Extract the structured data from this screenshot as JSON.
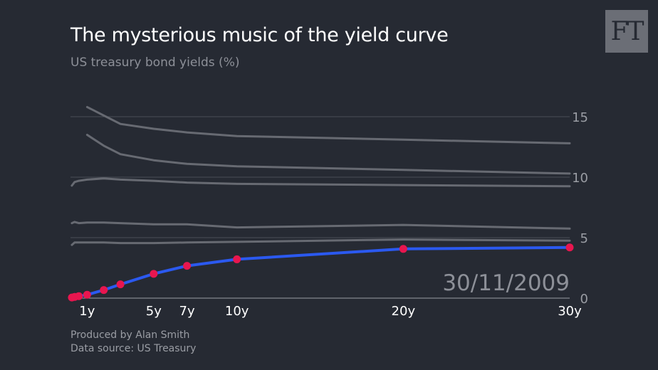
{
  "header": {
    "title": "The mysterious music of the yield curve",
    "subtitle": "US treasury bond yields (%)"
  },
  "logo": {
    "text": "FT"
  },
  "footer": {
    "line1": "Produced by Alan Smith",
    "line2": "Data source: US Treasury"
  },
  "chart_data": {
    "type": "line",
    "title": "The mysterious music of the yield curve",
    "subtitle": "US treasury bond yields (%)",
    "date_label": "30/11/2009",
    "x_ticks": [
      {
        "x": 1,
        "label": "1y"
      },
      {
        "x": 5,
        "label": "5y"
      },
      {
        "x": 7,
        "label": "7y"
      },
      {
        "x": 10,
        "label": "10y"
      },
      {
        "x": 20,
        "label": "20y"
      },
      {
        "x": 30,
        "label": "30y"
      }
    ],
    "y_ticks": [
      0,
      5,
      10,
      15
    ],
    "ylim": [
      0,
      16
    ],
    "xlim": [
      0,
      30
    ],
    "grid": true,
    "current": {
      "color": "#2b59f0",
      "marker_color": "#e8164f",
      "x": [
        0.0833,
        0.25,
        0.5,
        1,
        2,
        3,
        5,
        7,
        10,
        20,
        30
      ],
      "y": [
        0.05,
        0.1,
        0.16,
        0.28,
        0.67,
        1.14,
        2.01,
        2.67,
        3.21,
        4.07,
        4.19
      ]
    },
    "history": [
      {
        "x": [
          0.0833,
          0.25,
          0.5,
          1,
          2,
          3,
          5,
          7,
          10,
          20,
          30
        ],
        "y": [
          4.4,
          4.6,
          4.6,
          4.6,
          4.6,
          4.55,
          4.55,
          4.6,
          4.65,
          4.85,
          4.75
        ]
      },
      {
        "x": [
          0.0833,
          0.25,
          0.5,
          1,
          2,
          3,
          5,
          7,
          10,
          20,
          30
        ],
        "y": [
          6.2,
          6.3,
          6.2,
          6.25,
          6.25,
          6.2,
          6.1,
          6.1,
          5.85,
          6.05,
          5.75
        ]
      },
      {
        "x": [
          0.0833,
          0.25,
          0.5,
          1,
          2,
          3,
          5,
          7,
          10,
          20,
          30
        ],
        "y": [
          9.3,
          9.6,
          9.7,
          9.8,
          9.9,
          9.8,
          9.7,
          9.55,
          9.45,
          9.35,
          9.25
        ]
      },
      {
        "x": [
          1,
          2,
          3,
          5,
          7,
          10,
          20,
          30
        ],
        "y": [
          13.5,
          12.6,
          11.9,
          11.4,
          11.1,
          10.9,
          10.6,
          10.3
        ]
      },
      {
        "x": [
          1,
          2,
          3,
          5,
          7,
          10,
          20,
          30
        ],
        "y": [
          15.8,
          15.1,
          14.4,
          14.0,
          13.7,
          13.4,
          13.1,
          12.8
        ]
      }
    ]
  }
}
